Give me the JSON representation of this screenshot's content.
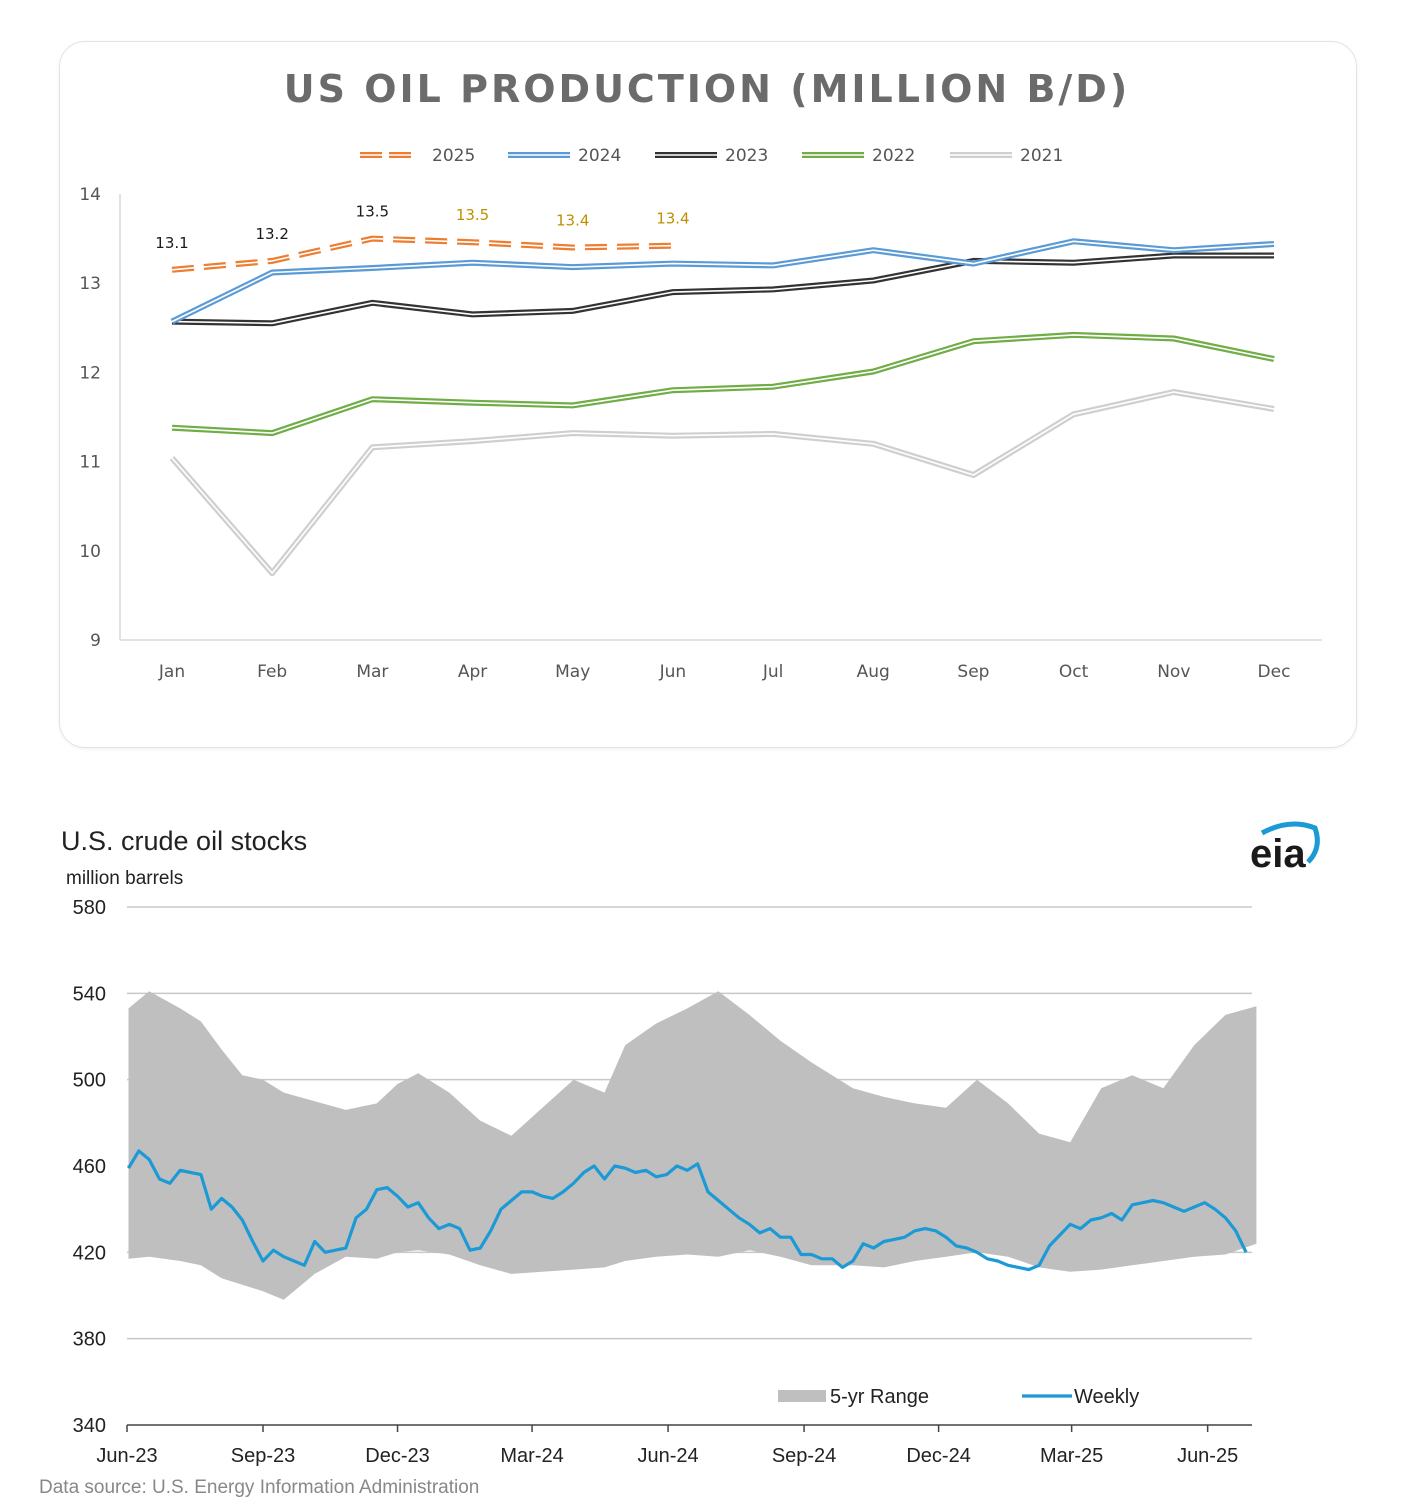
{
  "chart_data": [
    {
      "type": "line",
      "title": "US OIL PRODUCTION (MILLION B/D)",
      "categories": [
        "Jan",
        "Feb",
        "Mar",
        "Apr",
        "May",
        "Jun",
        "Jul",
        "Aug",
        "Sep",
        "Oct",
        "Nov",
        "Dec"
      ],
      "ylim": [
        9,
        14
      ],
      "yticks": [
        9,
        10,
        11,
        12,
        13,
        14
      ],
      "grid": false,
      "legend_position": "top",
      "series": [
        {
          "name": "2025",
          "color": "#ed7d31",
          "style": "dashed",
          "values": [
            13.15,
            13.25,
            13.5,
            13.46,
            13.4,
            13.42,
            null,
            null,
            null,
            null,
            null,
            null
          ]
        },
        {
          "name": "2024",
          "color": "#5b9bd5",
          "style": "solid",
          "values": [
            12.57,
            13.12,
            13.17,
            13.23,
            13.18,
            13.22,
            13.2,
            13.37,
            13.22,
            13.47,
            13.37,
            13.44
          ]
        },
        {
          "name": "2023",
          "color": "#333333",
          "style": "solid",
          "values": [
            12.57,
            12.55,
            12.78,
            12.65,
            12.69,
            12.9,
            12.93,
            13.03,
            13.25,
            13.23,
            13.31,
            13.31
          ]
        },
        {
          "name": "2022",
          "color": "#70ad47",
          "style": "solid",
          "values": [
            11.38,
            11.32,
            11.7,
            11.66,
            11.63,
            11.8,
            11.84,
            12.01,
            12.35,
            12.42,
            12.38,
            12.15
          ]
        },
        {
          "name": "2021",
          "color": "#cfcfcf",
          "style": "solid",
          "values": [
            11.04,
            9.75,
            11.16,
            11.23,
            11.32,
            11.29,
            11.31,
            11.2,
            10.85,
            11.53,
            11.78,
            11.59
          ]
        }
      ],
      "data_labels": [
        {
          "category": "Jan",
          "value": 13.15,
          "text": "13.1",
          "color": "#1a1a1a"
        },
        {
          "category": "Feb",
          "value": 13.25,
          "text": "13.2",
          "color": "#1a1a1a"
        },
        {
          "category": "Mar",
          "value": 13.5,
          "text": "13.5",
          "color": "#1a1a1a"
        },
        {
          "category": "Apr",
          "value": 13.46,
          "text": "13.5",
          "color": "#bf9000"
        },
        {
          "category": "May",
          "value": 13.4,
          "text": "13.4",
          "color": "#bf9000"
        },
        {
          "category": "Jun",
          "value": 13.42,
          "text": "13.4",
          "color": "#bf9000"
        }
      ]
    },
    {
      "type": "area",
      "title": "U.S. crude oil stocks",
      "ylabel": "million barrels",
      "ylim": [
        340,
        580
      ],
      "yticks": [
        340,
        380,
        420,
        460,
        500,
        540,
        580
      ],
      "xlim": [
        "2023-06",
        "2025-07"
      ],
      "xticks": [
        "Jun-23",
        "Sep-23",
        "Dec-23",
        "Mar-24",
        "Jun-24",
        "Sep-24",
        "Dec-24",
        "Mar-25",
        "Jun-25"
      ],
      "grid": true,
      "legend_position": "bottom-right",
      "source": "Data source: U.S. Energy Information Administration",
      "logo": "eia",
      "band": {
        "name": "5-yr Range",
        "color": "#bfbfbf",
        "x": [
          "2023-06-02",
          "2023-06-16",
          "2023-07-07",
          "2023-07-21",
          "2023-08-04",
          "2023-08-18",
          "2023-09-01",
          "2023-09-15",
          "2023-10-06",
          "2023-10-27",
          "2023-11-17",
          "2023-12-01",
          "2023-12-15",
          "2024-01-05",
          "2024-01-26",
          "2024-02-16",
          "2024-03-08",
          "2024-03-29",
          "2024-04-19",
          "2024-05-03",
          "2024-05-24",
          "2024-06-14",
          "2024-07-05",
          "2024-07-26",
          "2024-08-16",
          "2024-09-06",
          "2024-10-04",
          "2024-10-25",
          "2024-11-15",
          "2024-12-06",
          "2024-12-27",
          "2025-01-17",
          "2025-02-07",
          "2025-02-28",
          "2025-03-21",
          "2025-04-11",
          "2025-05-02",
          "2025-05-23",
          "2025-06-13",
          "2025-07-04"
        ],
        "high": [
          533,
          541,
          533,
          527,
          514,
          502,
          500,
          494,
          490,
          486,
          489,
          498,
          503,
          494,
          481,
          474,
          487,
          500,
          494,
          516,
          526,
          533,
          541,
          530,
          518,
          508,
          496,
          492,
          489,
          487,
          500,
          489,
          475,
          471,
          496,
          502,
          496,
          516,
          530,
          534
        ],
        "low": [
          417,
          418,
          416,
          414,
          408,
          405,
          402,
          398,
          410,
          418,
          417,
          420,
          421,
          419,
          414,
          410,
          411,
          412,
          413,
          416,
          418,
          419,
          418,
          421,
          418,
          414,
          414,
          413,
          416,
          418,
          420,
          418,
          413,
          411,
          412,
          414,
          416,
          418,
          419,
          424
        ]
      },
      "series": [
        {
          "name": "Weekly",
          "color": "#1b9ad6",
          "x": [
            "2023-06-02",
            "2023-06-09",
            "2023-06-16",
            "2023-06-23",
            "2023-06-30",
            "2023-07-07",
            "2023-07-14",
            "2023-07-21",
            "2023-07-28",
            "2023-08-04",
            "2023-08-11",
            "2023-08-18",
            "2023-08-25",
            "2023-09-01",
            "2023-09-08",
            "2023-09-15",
            "2023-09-22",
            "2023-09-29",
            "2023-10-06",
            "2023-10-13",
            "2023-10-20",
            "2023-10-27",
            "2023-11-03",
            "2023-11-10",
            "2023-11-17",
            "2023-11-24",
            "2023-12-01",
            "2023-12-08",
            "2023-12-15",
            "2023-12-22",
            "2023-12-29",
            "2024-01-05",
            "2024-01-12",
            "2024-01-19",
            "2024-01-26",
            "2024-02-02",
            "2024-02-09",
            "2024-02-16",
            "2024-02-23",
            "2024-03-01",
            "2024-03-08",
            "2024-03-15",
            "2024-03-22",
            "2024-03-29",
            "2024-04-05",
            "2024-04-12",
            "2024-04-19",
            "2024-04-26",
            "2024-05-03",
            "2024-05-10",
            "2024-05-17",
            "2024-05-24",
            "2024-05-31",
            "2024-06-07",
            "2024-06-14",
            "2024-06-21",
            "2024-06-28",
            "2024-07-05",
            "2024-07-12",
            "2024-07-19",
            "2024-07-26",
            "2024-08-02",
            "2024-08-09",
            "2024-08-16",
            "2024-08-23",
            "2024-08-30",
            "2024-09-06",
            "2024-09-13",
            "2024-09-20",
            "2024-09-27",
            "2024-10-04",
            "2024-10-11",
            "2024-10-18",
            "2024-10-25",
            "2024-11-01",
            "2024-11-08",
            "2024-11-15",
            "2024-11-22",
            "2024-11-29",
            "2024-12-06",
            "2024-12-13",
            "2024-12-20",
            "2024-12-27",
            "2025-01-03",
            "2025-01-10",
            "2025-01-17",
            "2025-01-24",
            "2025-01-31",
            "2025-02-07",
            "2025-02-14",
            "2025-02-21",
            "2025-02-28",
            "2025-03-07",
            "2025-03-14",
            "2025-03-21",
            "2025-03-28",
            "2025-04-04",
            "2025-04-11",
            "2025-04-18",
            "2025-04-25",
            "2025-05-02",
            "2025-05-09",
            "2025-05-16",
            "2025-05-23",
            "2025-05-30",
            "2025-06-06",
            "2025-06-13",
            "2025-06-20",
            "2025-06-27"
          ],
          "values": [
            459,
            467,
            463,
            454,
            452,
            458,
            457,
            456,
            440,
            445,
            441,
            435,
            425,
            416,
            421,
            418,
            416,
            414,
            425,
            420,
            421,
            422,
            436,
            440,
            449,
            450,
            446,
            441,
            443,
            436,
            431,
            433,
            431,
            421,
            422,
            430,
            440,
            444,
            448,
            448,
            446,
            445,
            448,
            452,
            457,
            460,
            454,
            460,
            459,
            457,
            458,
            455,
            456,
            460,
            458,
            461,
            448,
            444,
            440,
            436,
            433,
            429,
            431,
            427,
            427,
            419,
            419,
            417,
            417,
            413,
            416,
            424,
            422,
            425,
            426,
            427,
            430,
            431,
            430,
            427,
            423,
            422,
            420,
            417,
            416,
            414,
            413,
            412,
            414,
            423,
            428,
            433,
            431,
            435,
            436,
            438,
            435,
            442,
            443,
            444,
            443,
            441,
            439,
            441,
            443,
            440,
            436,
            430,
            420
          ]
        }
      ]
    }
  ]
}
